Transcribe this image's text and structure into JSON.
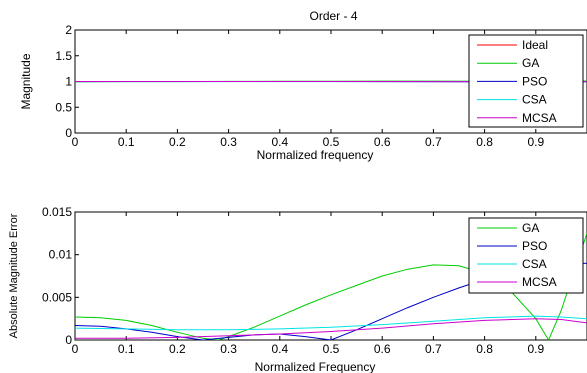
{
  "chart_data": [
    {
      "type": "line",
      "title": "Order - 4",
      "xlabel": "Normalized frequency",
      "ylabel": "Magnitude",
      "xlim": [
        0,
        1
      ],
      "ylim": [
        0,
        2
      ],
      "xticks": [
        0,
        0.1,
        0.2,
        0.3,
        0.4,
        0.5,
        0.6,
        0.7,
        0.8,
        0.9
      ],
      "yticks": [
        0,
        0.5,
        1,
        1.5,
        2
      ],
      "xtick_labels": [
        "0",
        "0.1",
        "0.2",
        "0.3",
        "0.4",
        "0.5",
        "0.6",
        "0.7",
        "0.8",
        "0.9"
      ],
      "ytick_labels": [
        "0",
        "0.5",
        "1",
        "1.5",
        "2"
      ],
      "grid": false,
      "legend_position": "top-right",
      "series": [
        {
          "name": "Ideal",
          "color": "#ff0000",
          "x": [
            0,
            0.25,
            0.5,
            0.75,
            1
          ],
          "y": [
            1,
            1,
            1,
            1,
            1
          ]
        },
        {
          "name": "GA",
          "color": "#00cc00",
          "x": [
            0,
            0.1,
            0.2,
            0.3,
            0.4,
            0.5,
            0.6,
            0.7,
            0.8,
            0.9,
            1
          ],
          "y": [
            0.997,
            0.998,
            0.999,
            1.001,
            1.003,
            1.005,
            1.007,
            1.008,
            1.006,
            1.0,
            1.009
          ]
        },
        {
          "name": "PSO",
          "color": "#0000cc",
          "x": [
            0,
            0.25,
            0.5,
            0.75,
            1
          ],
          "y": [
            0.999,
            1.0,
            1.0,
            0.997,
            0.996
          ]
        },
        {
          "name": "CSA",
          "color": "#00e5e5",
          "x": [
            0,
            0.25,
            0.5,
            0.75,
            1
          ],
          "y": [
            0.999,
            0.999,
            0.999,
            0.998,
            0.998
          ]
        },
        {
          "name": "MCSA",
          "color": "#cc00cc",
          "x": [
            0,
            0.25,
            0.5,
            0.75,
            1
          ],
          "y": [
            1.0,
            1.0,
            1.0,
            0.999,
            0.998
          ]
        }
      ]
    },
    {
      "type": "line",
      "title": "",
      "xlabel": "Normalized Frequency",
      "ylabel": "Absolute Magnitude Error",
      "xlim": [
        0,
        1
      ],
      "ylim": [
        0,
        0.015
      ],
      "xticks": [
        0,
        0.1,
        0.2,
        0.3,
        0.4,
        0.5,
        0.6,
        0.7,
        0.8,
        0.9
      ],
      "yticks": [
        0,
        0.005,
        0.01,
        0.015
      ],
      "xtick_labels": [
        "0",
        "0.1",
        "0.2",
        "0.3",
        "0.4",
        "0.5",
        "0.6",
        "0.7",
        "0.8",
        "0.9"
      ],
      "ytick_labels": [
        "0",
        "0.005",
        "0.01",
        "0.015"
      ],
      "grid": false,
      "legend_position": "top-right",
      "series": [
        {
          "name": "GA",
          "color": "#00cc00",
          "x": [
            0,
            0.05,
            0.1,
            0.15,
            0.2,
            0.25,
            0.28,
            0.3,
            0.35,
            0.4,
            0.45,
            0.5,
            0.55,
            0.6,
            0.65,
            0.7,
            0.75,
            0.8,
            0.85,
            0.9,
            0.925,
            0.95,
            0.97,
            1.0
          ],
          "y": [
            0.0027,
            0.0026,
            0.0023,
            0.0017,
            0.0009,
            0.0002,
            0.0,
            0.0004,
            0.0015,
            0.0028,
            0.0041,
            0.0053,
            0.0064,
            0.0075,
            0.0083,
            0.0088,
            0.0087,
            0.0078,
            0.0058,
            0.0025,
            0.0,
            0.0035,
            0.0072,
            0.0125
          ]
        },
        {
          "name": "PSO",
          "color": "#0000cc",
          "x": [
            0,
            0.05,
            0.1,
            0.15,
            0.2,
            0.25,
            0.3,
            0.35,
            0.4,
            0.45,
            0.5,
            0.55,
            0.6,
            0.65,
            0.7,
            0.75,
            0.8,
            0.85,
            0.9,
            0.95,
            1.0
          ],
          "y": [
            0.0017,
            0.0016,
            0.0013,
            0.0009,
            0.0004,
            0.0,
            0.0003,
            0.0006,
            0.0007,
            0.0004,
            0.0,
            0.0012,
            0.0025,
            0.0038,
            0.005,
            0.0061,
            0.0071,
            0.0079,
            0.0085,
            0.0089,
            0.009
          ]
        },
        {
          "name": "CSA",
          "color": "#00e5e5",
          "x": [
            0,
            0.1,
            0.2,
            0.3,
            0.4,
            0.5,
            0.6,
            0.7,
            0.8,
            0.9,
            0.95,
            1.0
          ],
          "y": [
            0.0014,
            0.0013,
            0.0012,
            0.0012,
            0.0013,
            0.0015,
            0.0018,
            0.0022,
            0.0026,
            0.0028,
            0.0027,
            0.0025
          ]
        },
        {
          "name": "MCSA",
          "color": "#cc00cc",
          "x": [
            0,
            0.1,
            0.2,
            0.3,
            0.4,
            0.5,
            0.6,
            0.7,
            0.8,
            0.9,
            0.95,
            1.0
          ],
          "y": [
            0.0002,
            0.0002,
            0.0003,
            0.0005,
            0.0007,
            0.001,
            0.0014,
            0.0019,
            0.0023,
            0.0025,
            0.0024,
            0.002
          ]
        }
      ]
    }
  ]
}
